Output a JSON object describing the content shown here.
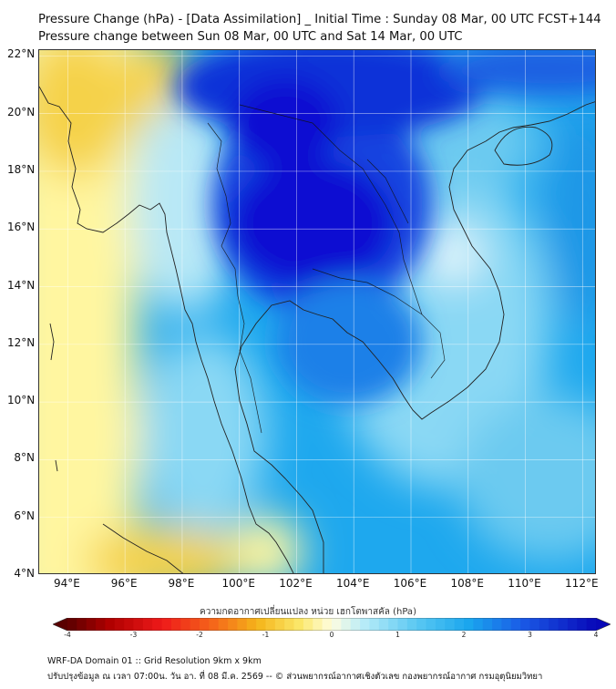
{
  "header": {
    "title_line1": "Pressure Change (hPa) - [Data Assimilation] _ Initial Time : Sunday 08 Mar, 00 UTC FCST+144",
    "title_line2": "Pressure change between Sun 08 Mar, 00 UTC and Sat 14 Mar, 00 UTC"
  },
  "map": {
    "y_ticks": [
      "22°N",
      "20°N",
      "18°N",
      "16°N",
      "14°N",
      "12°N",
      "10°N",
      "8°N",
      "6°N",
      "4°N"
    ],
    "x_ticks": [
      "94°E",
      "96°E",
      "98°E",
      "100°E",
      "102°E",
      "104°E",
      "106°E",
      "108°E",
      "110°E",
      "112°E"
    ],
    "lon_range": [
      93,
      112.5
    ],
    "lat_range": [
      4,
      22.2
    ],
    "grid": true,
    "field_colors": {
      "strong_fall": "#1010dd",
      "fall": "#1ea8ee",
      "light_fall": "#8ad8f4",
      "neutral": "#e8f8fc",
      "rise": "#fff6a0",
      "strong_rise": "#f5d24a"
    },
    "coastline_color": "#222222"
  },
  "colorbar": {
    "title": "ความกดอากาศเปลี่ยนแปลง หน่วย เฮกโตพาสคัล (hPa)",
    "ticks": [
      "-4",
      "-3",
      "-2",
      "-1",
      "0",
      "1",
      "2",
      "3",
      "4"
    ],
    "range": [
      -4,
      4
    ]
  },
  "footer": {
    "line1": "WRF-DA Domain 01 :: Grid Resolution 9km x 9km",
    "line2": "ปรับปรุงข้อมูล ณ เวลา 07:00น. วัน อา. ที่ 08 มี.ค. 2569 -- © ส่วนพยากรณ์อากาศเชิงตัวเลข กองพยากรณ์อากาศ กรมอุตุนิยมวิทยา"
  }
}
